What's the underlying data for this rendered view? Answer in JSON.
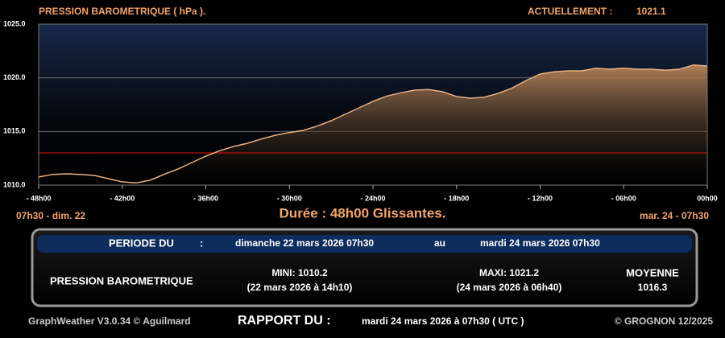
{
  "chart_data": {
    "type": "area-line",
    "title": "PRESSION BAROMETRIQUE ( hPa ).",
    "current_label": "ACTUELLEMENT :",
    "current_value": "1021.1",
    "subtitle": "Durée : 48h00 Glissantes.",
    "start_label": "07h30 - dim. 22",
    "end_label": "mar. 24 - 07h30",
    "x": [
      -48,
      -47,
      -46,
      -45,
      -44,
      -43,
      -42,
      -41,
      -40,
      -39,
      -38,
      -37,
      -36,
      -35,
      -34,
      -33,
      -32,
      -31,
      -30,
      -29,
      -28,
      -27,
      -26,
      -25,
      -24,
      -23,
      -22,
      -21,
      -20,
      -19,
      -18,
      -17,
      -16,
      -15,
      -14,
      -13,
      -12,
      -11,
      -10,
      -9,
      -8,
      -7,
      -6,
      -5,
      -4,
      -3,
      -2,
      -1,
      0
    ],
    "values": [
      1010.75,
      1011.0,
      1011.05,
      1011.0,
      1010.9,
      1010.6,
      1010.3,
      1010.2,
      1010.45,
      1011.0,
      1011.5,
      1012.1,
      1012.7,
      1013.2,
      1013.6,
      1013.9,
      1014.3,
      1014.65,
      1014.9,
      1015.1,
      1015.5,
      1016.0,
      1016.6,
      1017.2,
      1017.8,
      1018.3,
      1018.6,
      1018.85,
      1018.9,
      1018.7,
      1018.25,
      1018.1,
      1018.2,
      1018.55,
      1019.05,
      1019.75,
      1020.35,
      1020.55,
      1020.65,
      1020.65,
      1020.9,
      1020.8,
      1020.9,
      1020.8,
      1020.8,
      1020.7,
      1020.8,
      1021.2,
      1021.1
    ],
    "color": "#e8b083",
    "xlim": [
      -48,
      0
    ],
    "xticks": [
      {
        "value": -48,
        "label": "- 48h00"
      },
      {
        "value": -42,
        "label": "- 42h00"
      },
      {
        "value": -36,
        "label": "- 36h00"
      },
      {
        "value": -30,
        "label": "- 30h00"
      },
      {
        "value": -24,
        "label": "- 24h00"
      },
      {
        "value": -18,
        "label": "- 18h00"
      },
      {
        "value": -12,
        "label": "- 12h00"
      },
      {
        "value": -6,
        "label": "- 06h00"
      },
      {
        "value": 0,
        "label": "00h00"
      }
    ],
    "ylim": [
      1010,
      1025
    ],
    "yticks": [
      {
        "value": 1010,
        "label": "1010.0"
      },
      {
        "value": 1015,
        "label": "1015.0"
      },
      {
        "value": 1020,
        "label": "1020.0"
      },
      {
        "value": 1025,
        "label": "1025.0"
      }
    ],
    "grid": true,
    "reference_line": 1013,
    "reference_color": "#e01010"
  },
  "summary": {
    "period_label": "PERIODE DU",
    "period_colon": ":",
    "period_start": "dimanche 22 mars 2026 07h30",
    "period_to": "au",
    "period_end": "mardi 24 mars 2026 07h30",
    "row_label": "PRESSION BAROMETRIQUE",
    "min": "MINI:  1010.2",
    "min_when": "(22 mars 2026 à 14h10)",
    "max": "MAXI:  1021.2",
    "max_when": "(24 mars 2026 à 06h40)",
    "mean_label": "MOYENNE",
    "mean": "1016.3"
  },
  "footer": {
    "software": "GraphWeather V3.0.34 © Aguilmard",
    "report_label": "RAPPORT DU :",
    "report_date": "mardi 24 mars 2026 à 07h30 ( UTC )",
    "copyright": "© GROGNON 12/2025"
  }
}
